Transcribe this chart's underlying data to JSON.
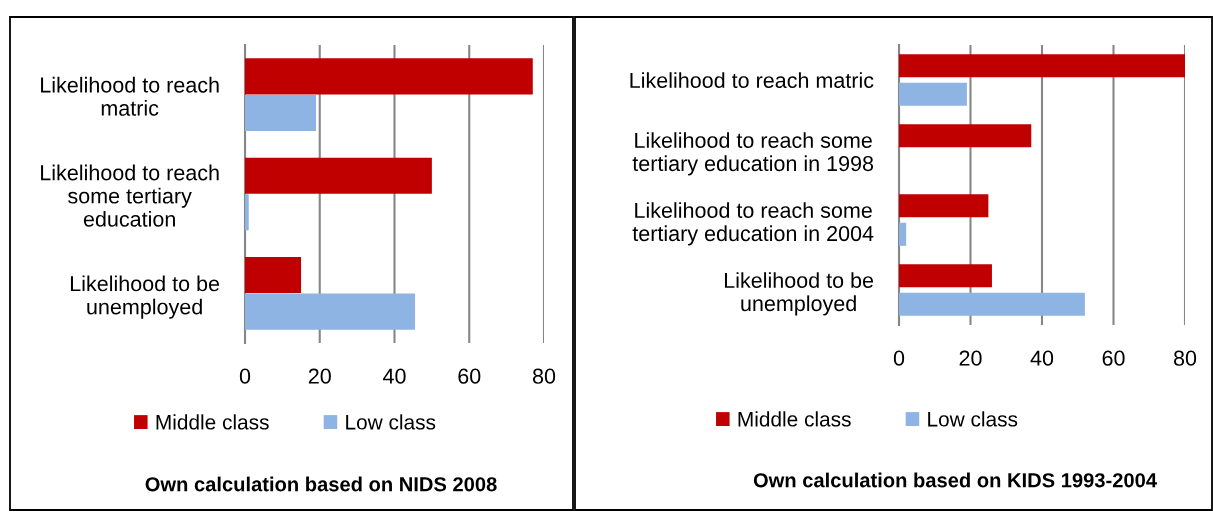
{
  "chart_data": [
    {
      "type": "bar",
      "orientation": "horizontal",
      "categories": [
        "Likelihood to reach\nmatric",
        "Likelihood to reach\nsome tertiary\neducation",
        "Likelihood to be\nunemployed"
      ],
      "series": [
        {
          "name": "Middle class",
          "color": "#c00000",
          "values": [
            77,
            50,
            15
          ]
        },
        {
          "name": "Low class",
          "color": "#8eb4e3",
          "values": [
            19,
            1,
            45.5
          ]
        }
      ],
      "xlim": [
        0,
        80
      ],
      "xticks": [
        0,
        20,
        40,
        60,
        80
      ],
      "grid": "x",
      "legend": "bottom",
      "annotations": [
        "Own calculation based on NIDS 2008"
      ]
    },
    {
      "type": "bar",
      "orientation": "horizontal",
      "categories": [
        "Likelihood to reach matric",
        "Likelihood to reach some\ntertiary education in 1998",
        "Likelihood to reach some\ntertiary education in 2004",
        "Likelihood to be\nunemployed"
      ],
      "series": [
        {
          "name": "Middle class",
          "color": "#c00000",
          "values": [
            80,
            37,
            25,
            26
          ]
        },
        {
          "name": "Low class",
          "color": "#8eb4e3",
          "values": [
            19,
            null,
            2,
            52
          ]
        }
      ],
      "xlim": [
        0,
        80
      ],
      "xticks": [
        0,
        20,
        40,
        60,
        80
      ],
      "grid": "x",
      "legend": "bottom",
      "annotations": [
        "Own calculation based on KIDS 1993-2004"
      ]
    }
  ]
}
